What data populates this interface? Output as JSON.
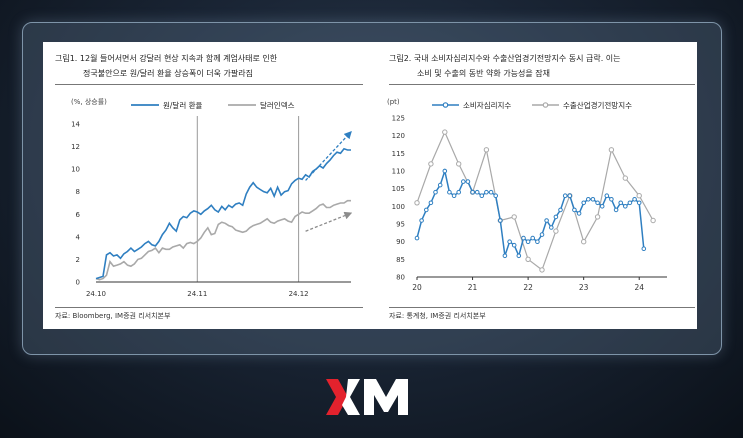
{
  "logo": {
    "text": "XM",
    "accent": "#e3222d"
  },
  "left": {
    "title_line1": "그림1.  12월  들어서면서  강달러  현상  지속과  함께  계엄사태로  인한",
    "title_line2": "정국불안으로 원/달러 환율 상승폭이 더욱 가팔라짐",
    "source": "자료: Bloomberg, IM증권 리서치본부"
  },
  "right": {
    "title_line1": "그림2.  국내  소비자심리지수와  수출산업경기전망지수  동시  급락.  이는",
    "title_line2": "소비 및 수출의 동반 약화 가능성을 잠재",
    "source": "자료: 통계청, IM증권 리서치본부"
  },
  "chart_data": [
    {
      "type": "line",
      "ylabel": "(%, 상승률)",
      "ylim": [
        0,
        14
      ],
      "yticks": [
        "0",
        "2",
        "4",
        "6",
        "8",
        "10",
        "12",
        "14"
      ],
      "xticks": [
        "24.10",
        "24.11",
        "24.12"
      ],
      "vlines": [
        "24.11",
        "24.12"
      ],
      "trend_arrows": true,
      "legend_placement": "top",
      "series": [
        {
          "name": "원/달러 환율",
          "color": "#2f7fc1",
          "values": [
            0.3,
            0.4,
            0.5,
            2.4,
            2.6,
            2.3,
            2.4,
            2.1,
            2.5,
            2.7,
            3.0,
            2.7,
            2.9,
            3.1,
            3.4,
            3.6,
            3.3,
            3.2,
            3.6,
            4.2,
            4.6,
            5.2,
            4.8,
            4.5,
            5.5,
            5.8,
            5.7,
            6.1,
            6.3,
            6.2,
            6.0,
            6.3,
            6.5,
            6.8,
            6.4,
            6.2,
            6.7,
            6.4,
            6.8,
            6.6,
            6.9,
            7.0,
            6.8,
            7.8,
            8.4,
            8.8,
            8.4,
            8.2,
            8.0,
            7.9,
            8.3,
            7.6,
            8.4,
            7.7,
            8.0,
            8.1,
            8.7,
            9.0,
            9.2,
            9.1,
            9.5,
            9.3,
            9.8,
            10.0,
            10.3,
            10.1,
            10.5,
            10.8,
            11.2,
            11.5,
            11.4,
            11.8,
            11.7,
            11.7
          ]
        },
        {
          "name": "달러인덱스",
          "color": "#a9a9a9",
          "values": [
            0.3,
            0.2,
            0.3,
            0.6,
            1.8,
            1.4,
            1.5,
            1.6,
            1.8,
            1.5,
            1.4,
            1.6,
            2.0,
            2.1,
            2.4,
            2.7,
            2.8,
            3.0,
            2.6,
            3.0,
            2.9,
            2.9,
            3.1,
            3.2,
            3.3,
            3.0,
            3.4,
            3.5,
            3.4,
            3.6,
            3.9,
            4.4,
            4.8,
            4.2,
            4.3,
            5.1,
            5.3,
            5.2,
            5.0,
            4.9,
            4.6,
            4.5,
            4.4,
            4.5,
            4.8,
            5.0,
            5.1,
            5.2,
            5.4,
            5.6,
            5.3,
            5.2,
            5.4,
            5.5,
            5.6,
            5.4,
            5.3,
            5.8,
            6.0,
            6.2,
            6.1,
            6.1,
            6.3,
            6.5,
            6.8,
            6.9,
            6.6,
            6.6,
            6.8,
            6.9,
            7.0,
            7.0,
            7.2,
            7.2
          ]
        }
      ]
    },
    {
      "type": "line",
      "ylabel": "(pt)",
      "ylim": [
        80,
        125
      ],
      "yticks": [
        "80",
        "85",
        "90",
        "95",
        "100",
        "105",
        "110",
        "115",
        "120",
        "125"
      ],
      "xticks": [
        "20",
        "21",
        "22",
        "23",
        "24"
      ],
      "xlim": [
        2020,
        2024.5
      ],
      "legend_placement": "top",
      "series": [
        {
          "name": "소비자심리지수",
          "color": "#2f7fc1",
          "x": [
            2020.0,
            2020.083,
            2020.167,
            2020.25,
            2020.333,
            2020.417,
            2020.5,
            2020.583,
            2020.667,
            2020.75,
            2020.833,
            2020.917,
            2021.0,
            2021.083,
            2021.167,
            2021.25,
            2021.333,
            2021.417,
            2021.5,
            2021.583,
            2021.667,
            2021.75,
            2021.833,
            2021.917,
            2022.0,
            2022.083,
            2022.167,
            2022.25,
            2022.333,
            2022.417,
            2022.5,
            2022.583,
            2022.667,
            2022.75,
            2022.833,
            2022.917,
            2023.0,
            2023.083,
            2023.167,
            2023.25,
            2023.333,
            2023.417,
            2023.5,
            2023.583,
            2023.667,
            2023.75,
            2023.833,
            2023.917,
            2024.0,
            2024.083
          ],
          "values": [
            91,
            96,
            99,
            101,
            104,
            106,
            110,
            104,
            103,
            104,
            107,
            107,
            104,
            104,
            103,
            104,
            104,
            103,
            96,
            86,
            90,
            89,
            86,
            91,
            90,
            91,
            90,
            92,
            96,
            94,
            97,
            99,
            103,
            103,
            99,
            98,
            101,
            102,
            102,
            101,
            100,
            103,
            102,
            99,
            101,
            100,
            101,
            102,
            101,
            88
          ]
        },
        {
          "name": "수출산업경기전망지수",
          "color": "#a9a9a9",
          "x": [
            2020.0,
            2020.25,
            2020.5,
            2020.75,
            2021.0,
            2021.25,
            2021.5,
            2021.75,
            2022.0,
            2022.25,
            2022.5,
            2022.75,
            2023.0,
            2023.25,
            2023.5,
            2023.75,
            2024.0,
            2024.25
          ],
          "values": [
            101,
            112,
            121,
            112,
            104,
            116,
            96,
            97,
            85,
            82,
            93,
            103,
            90,
            97,
            116,
            108,
            103,
            96
          ]
        }
      ]
    }
  ]
}
